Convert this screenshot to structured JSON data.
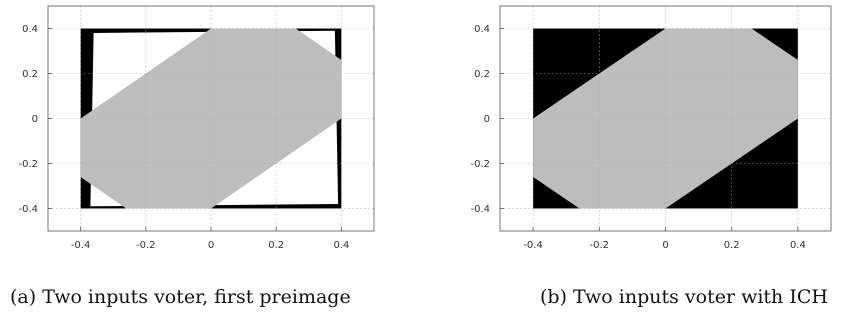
{
  "chart_data": [
    {
      "type": "area",
      "caption": "(a) Two inputs voter, first preimage",
      "xlim": [
        -0.5,
        0.5
      ],
      "ylim": [
        -0.5,
        0.5
      ],
      "xticks": [
        "-0.4",
        "-0.2",
        "0",
        "0.2",
        "0.4"
      ],
      "yticks": [
        "0.4",
        "0.2",
        "0",
        "-0.2",
        "-0.4"
      ],
      "xtick_values": [
        -0.4,
        -0.2,
        0,
        0.2,
        0.4
      ],
      "ytick_values": [
        0.4,
        0.2,
        0,
        -0.2,
        -0.4
      ],
      "grid": true,
      "regions": [
        {
          "color": "#000000",
          "polygons": [
            [
              [
                -0.4,
                0.4
              ],
              [
                0.4,
                0.4
              ],
              [
                0.4,
                -0.4
              ],
              [
                -0.4,
                -0.4
              ]
            ]
          ]
        },
        {
          "color": "#ffffff",
          "polygons": [
            [
              [
                -0.36,
                0.38
              ],
              [
                0.38,
                0.39
              ],
              [
                0.39,
                -0.38
              ],
              [
                -0.37,
                -0.39
              ]
            ]
          ]
        },
        {
          "color": "#bdbdbd",
          "polygons": [
            [
              [
                -0.4,
                0.0
              ],
              [
                -0.4,
                -0.26
              ],
              [
                -0.26,
                -0.4
              ],
              [
                0.0,
                -0.4
              ],
              [
                0.4,
                0.0
              ],
              [
                0.4,
                0.26
              ],
              [
                0.26,
                0.4
              ],
              [
                0.0,
                0.4
              ]
            ]
          ]
        }
      ]
    },
    {
      "type": "area",
      "caption": "(b) Two inputs voter with ICH",
      "xlim": [
        -0.5,
        0.5
      ],
      "ylim": [
        -0.5,
        0.5
      ],
      "xticks": [
        "-0.4",
        "-0.2",
        "0",
        "0.2",
        "0.4"
      ],
      "yticks": [
        "0.4",
        "0.2",
        "0",
        "-0.2",
        "-0.4"
      ],
      "xtick_values": [
        -0.4,
        -0.2,
        0,
        0.2,
        0.4
      ],
      "ytick_values": [
        0.4,
        0.2,
        0,
        -0.2,
        -0.4
      ],
      "grid": true,
      "regions": [
        {
          "color": "#000000",
          "polygons": [
            [
              [
                -0.4,
                0.4
              ],
              [
                0.4,
                0.4
              ],
              [
                0.4,
                -0.4
              ],
              [
                -0.4,
                -0.4
              ]
            ]
          ]
        },
        {
          "color": "#bdbdbd",
          "polygons": [
            [
              [
                -0.4,
                0.0
              ],
              [
                -0.4,
                -0.26
              ],
              [
                -0.26,
                -0.4
              ],
              [
                0.0,
                -0.4
              ],
              [
                0.4,
                0.0
              ],
              [
                0.4,
                0.26
              ],
              [
                0.26,
                0.4
              ],
              [
                0.0,
                0.4
              ]
            ]
          ]
        }
      ]
    }
  ]
}
